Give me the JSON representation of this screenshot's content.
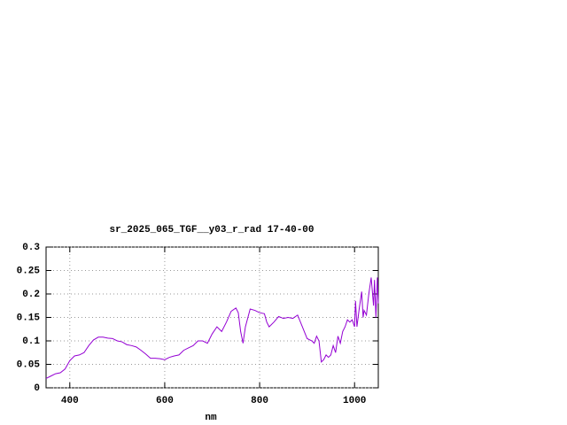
{
  "chart_data": {
    "type": "line",
    "title": "sr_2025_065_TGF__y03_r_rad 17-40-00",
    "xlabel": "nm",
    "x": [
      350,
      360,
      370,
      380,
      390,
      400,
      410,
      420,
      430,
      440,
      450,
      460,
      470,
      480,
      490,
      500,
      510,
      520,
      530,
      540,
      550,
      560,
      570,
      580,
      590,
      600,
      610,
      620,
      630,
      640,
      650,
      660,
      670,
      680,
      690,
      700,
      710,
      720,
      730,
      740,
      750,
      755,
      760,
      765,
      770,
      780,
      790,
      800,
      810,
      815,
      820,
      830,
      840,
      850,
      860,
      870,
      880,
      890,
      900,
      910,
      915,
      920,
      925,
      930,
      935,
      940,
      945,
      950,
      955,
      960,
      965,
      970,
      975,
      980,
      985,
      990,
      995,
      1000,
      1002,
      1005,
      1010,
      1015,
      1018,
      1020,
      1025,
      1030,
      1035,
      1040,
      1042,
      1045,
      1048,
      1050
    ],
    "series": [
      {
        "color": "#9400d3",
        "values": [
          0.02,
          0.025,
          0.03,
          0.032,
          0.04,
          0.058,
          0.068,
          0.07,
          0.075,
          0.09,
          0.102,
          0.108,
          0.108,
          0.106,
          0.105,
          0.1,
          0.098,
          0.092,
          0.09,
          0.087,
          0.08,
          0.072,
          0.063,
          0.063,
          0.062,
          0.06,
          0.065,
          0.068,
          0.07,
          0.08,
          0.085,
          0.09,
          0.1,
          0.1,
          0.095,
          0.115,
          0.13,
          0.12,
          0.14,
          0.163,
          0.17,
          0.16,
          0.12,
          0.095,
          0.13,
          0.168,
          0.165,
          0.16,
          0.158,
          0.14,
          0.13,
          0.14,
          0.152,
          0.148,
          0.15,
          0.148,
          0.155,
          0.13,
          0.105,
          0.1,
          0.095,
          0.11,
          0.1,
          0.055,
          0.06,
          0.07,
          0.065,
          0.07,
          0.09,
          0.075,
          0.11,
          0.095,
          0.12,
          0.13,
          0.145,
          0.14,
          0.145,
          0.13,
          0.185,
          0.13,
          0.17,
          0.205,
          0.15,
          0.165,
          0.155,
          0.2,
          0.235,
          0.175,
          0.23,
          0.15,
          0.235,
          0.18
        ]
      }
    ],
    "xlim": [
      350,
      1050
    ],
    "xticks": [
      400,
      600,
      800,
      1000
    ],
    "ylim": [
      0,
      0.3
    ],
    "yticks": [
      0,
      0.05,
      0.1,
      0.15,
      0.2,
      0.25,
      0.3
    ],
    "grid": true
  }
}
